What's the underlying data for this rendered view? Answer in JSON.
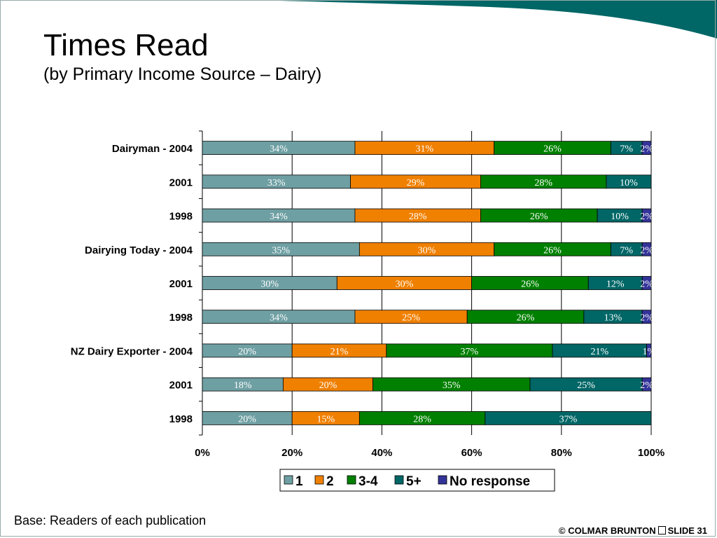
{
  "slide": {
    "title": "Times Read",
    "subtitle": "(by Primary Income Source – Dairy)",
    "base_note": "Base: Readers of each publication",
    "footer_brand": "© COLMAR BRUNTON",
    "footer_slide": "SLIDE 31",
    "theme_color": "#006666"
  },
  "chart_data": {
    "type": "bar",
    "orientation": "horizontal",
    "stacked": "percent",
    "categories": [
      "Dairyman - 2004",
      "2001",
      "1998",
      "Dairying Today - 2004",
      "2001",
      "1998",
      "NZ Dairy Exporter - 2004",
      "2001",
      "1998"
    ],
    "category_bold": [
      true,
      true,
      true,
      true,
      true,
      true,
      true,
      true,
      true
    ],
    "series": [
      {
        "name": "1",
        "color": "#6e9fa3",
        "values": [
          34,
          33,
          34,
          35,
          30,
          34,
          20,
          18,
          20
        ],
        "labels": [
          "34%",
          "33%",
          "34%",
          "35%",
          "30%",
          "34%",
          "20%",
          "18%",
          "20%"
        ]
      },
      {
        "name": "2",
        "color": "#f08000",
        "values": [
          31,
          29,
          28,
          30,
          30,
          25,
          21,
          20,
          15
        ],
        "labels": [
          "31%",
          "29%",
          "28%",
          "30%",
          "30%",
          "25%",
          "21%",
          "20%",
          "15%"
        ]
      },
      {
        "name": "3-4",
        "color": "#008000",
        "values": [
          26,
          28,
          26,
          26,
          26,
          26,
          37,
          35,
          28
        ],
        "labels": [
          "26%",
          "28%",
          "26%",
          "26%",
          "26%",
          "26%",
          "37%",
          "35%",
          "28%"
        ]
      },
      {
        "name": "5+",
        "color": "#006666",
        "values": [
          7,
          10,
          10,
          7,
          12,
          13,
          21,
          25,
          37
        ],
        "labels": [
          "7%",
          "10%",
          "10%",
          "7%",
          "12%",
          "13%",
          "21%",
          "25%",
          "37%"
        ]
      },
      {
        "name": "No response",
        "color": "#333399",
        "values": [
          2,
          0,
          2,
          2,
          2,
          2,
          1,
          2,
          0
        ],
        "labels": [
          "2%",
          "",
          "2%",
          "2%",
          "2%",
          "2%",
          "1%",
          "2%",
          ""
        ]
      }
    ],
    "x_ticks": [
      "0%",
      "20%",
      "40%",
      "60%",
      "80%",
      "100%"
    ],
    "xlim": [
      0,
      100
    ],
    "grid": true,
    "legend": "bottom-center"
  }
}
